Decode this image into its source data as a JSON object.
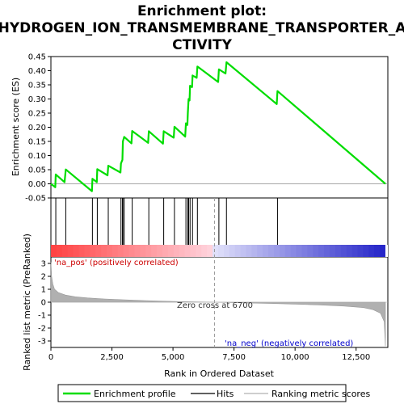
{
  "title_line1": "Enrichment plot:",
  "title_line2": "HYDROGEN_ION_TRANSMEMBRANE_TRANSPORTER_A",
  "title_line3": "CTIVITY",
  "chart_data": {
    "type": "line",
    "xlabel": "Rank in Ordered Dataset",
    "ylabel_top": "Enrichment score (ES)",
    "ylabel_bottom": "Ranked list metric (PreRanked)",
    "xlim": [
      0,
      13800
    ],
    "x_ticks": [
      0,
      2500,
      5000,
      7500,
      10000,
      12500
    ],
    "x_tick_labels": [
      "0",
      "2,500",
      "5,000",
      "7,500",
      "10,000",
      "12,500"
    ],
    "es_ylim": [
      -0.05,
      0.45
    ],
    "es_ticks": [
      -0.05,
      0.0,
      0.05,
      0.1,
      0.15,
      0.2,
      0.25,
      0.3,
      0.35,
      0.4,
      0.45
    ],
    "es_tick_labels": [
      "-0.05",
      "0.00",
      "0.05",
      "0.10",
      "0.15",
      "0.20",
      "0.25",
      "0.30",
      "0.35",
      "0.40",
      "0.45"
    ],
    "metric_ylim": [
      -3.5,
      3.5
    ],
    "metric_ticks": [
      3,
      2,
      1,
      0,
      -1,
      -2,
      -3
    ],
    "metric_tick_labels": [
      "3",
      "2",
      "1",
      "0",
      "-1",
      "-2",
      "-3"
    ],
    "enrichment_profile": [
      [
        0,
        0.0
      ],
      [
        180,
        -0.012
      ],
      [
        200,
        0.033
      ],
      [
        560,
        0.006
      ],
      [
        610,
        0.051
      ],
      [
        1680,
        -0.026
      ],
      [
        1700,
        0.018
      ],
      [
        1880,
        0.006
      ],
      [
        1900,
        0.052
      ],
      [
        2320,
        0.03
      ],
      [
        2350,
        0.064
      ],
      [
        2850,
        0.04
      ],
      [
        2870,
        0.072
      ],
      [
        2930,
        0.085
      ],
      [
        2950,
        0.15
      ],
      [
        3000,
        0.166
      ],
      [
        3300,
        0.143
      ],
      [
        3330,
        0.187
      ],
      [
        3980,
        0.145
      ],
      [
        4010,
        0.186
      ],
      [
        4590,
        0.142
      ],
      [
        4620,
        0.186
      ],
      [
        5030,
        0.163
      ],
      [
        5060,
        0.202
      ],
      [
        5500,
        0.167
      ],
      [
        5530,
        0.214
      ],
      [
        5590,
        0.208
      ],
      [
        5610,
        0.252
      ],
      [
        5640,
        0.3
      ],
      [
        5680,
        0.295
      ],
      [
        5700,
        0.347
      ],
      [
        5780,
        0.342
      ],
      [
        5800,
        0.383
      ],
      [
        5970,
        0.375
      ],
      [
        6000,
        0.415
      ],
      [
        6850,
        0.36
      ],
      [
        6880,
        0.405
      ],
      [
        7150,
        0.39
      ],
      [
        7190,
        0.43
      ],
      [
        9250,
        0.282
      ],
      [
        9280,
        0.328
      ],
      [
        13700,
        0.0
      ]
    ],
    "hits": [
      200,
      610,
      1700,
      1900,
      2350,
      2870,
      2930,
      2950,
      3000,
      3330,
      4010,
      4620,
      5060,
      5530,
      5610,
      5640,
      5700,
      5800,
      6000,
      6880,
      7190,
      9280
    ],
    "ranking_metric_profile": [
      [
        0,
        3.1
      ],
      [
        30,
        2.0
      ],
      [
        80,
        1.4
      ],
      [
        150,
        1.0
      ],
      [
        300,
        0.75
      ],
      [
        600,
        0.55
      ],
      [
        1000,
        0.42
      ],
      [
        1500,
        0.33
      ],
      [
        2000,
        0.27
      ],
      [
        3000,
        0.18
      ],
      [
        4000,
        0.11
      ],
      [
        5000,
        0.06
      ],
      [
        6000,
        0.02
      ],
      [
        6700,
        0.0
      ],
      [
        8000,
        -0.06
      ],
      [
        9000,
        -0.1
      ],
      [
        10000,
        -0.15
      ],
      [
        11000,
        -0.22
      ],
      [
        12000,
        -0.3
      ],
      [
        12800,
        -0.42
      ],
      [
        13200,
        -0.58
      ],
      [
        13500,
        -0.85
      ],
      [
        13650,
        -1.5
      ],
      [
        13700,
        -3.4
      ]
    ],
    "zero_cross_rank": 6700,
    "annotation_pos": "'na_pos' (positively correlated)",
    "annotation_neg": "'na_neg' (negatively correlated)",
    "annotation_zero": "Zero cross at 6700",
    "legend": [
      "Enrichment profile",
      "Hits",
      "Ranking metric scores"
    ],
    "colors": {
      "profile": "#00dd00",
      "hits": "#000000",
      "metric": "#b0b0b0",
      "pos_strong": "#ff4040",
      "neg_strong": "#3030d0",
      "zero_line": "#999999"
    }
  }
}
